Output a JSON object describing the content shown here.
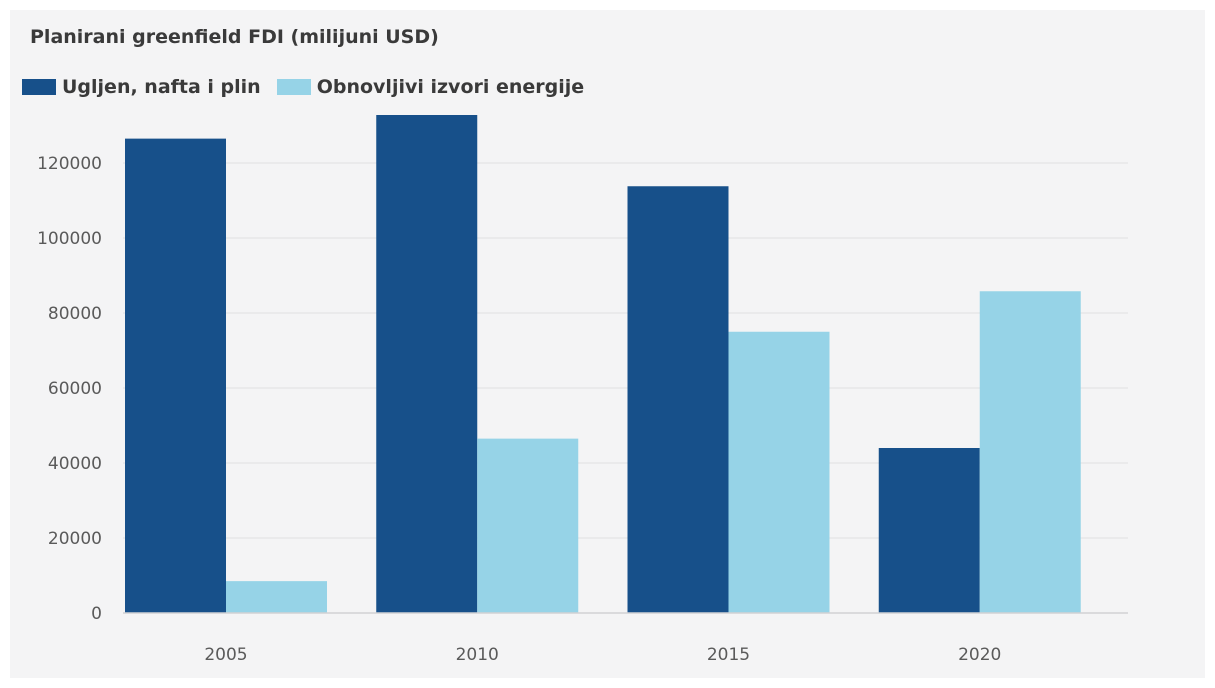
{
  "chart_data": {
    "type": "bar",
    "title": "Planirani greenfield FDI (milijuni USD)",
    "categories": [
      "2005",
      "2010",
      "2015",
      "2020"
    ],
    "series": [
      {
        "name": "Ugljen, nafta i plin",
        "color": "#17508a",
        "values": [
          126500,
          132800,
          113800,
          44000
        ]
      },
      {
        "name": "Obnovljivi izvori energije",
        "color": "#96d3e7",
        "values": [
          8500,
          46500,
          75000,
          85800
        ]
      }
    ],
    "ylim": [
      0,
      130000
    ],
    "yticks": [
      0,
      20000,
      40000,
      60000,
      80000,
      100000,
      120000
    ],
    "ytick_labels": [
      "0",
      "20000",
      "40000",
      "60000",
      "80000",
      "100000",
      "120000"
    ],
    "xlabel": "",
    "ylabel": "",
    "grid": true,
    "legend_position": "top-left"
  }
}
